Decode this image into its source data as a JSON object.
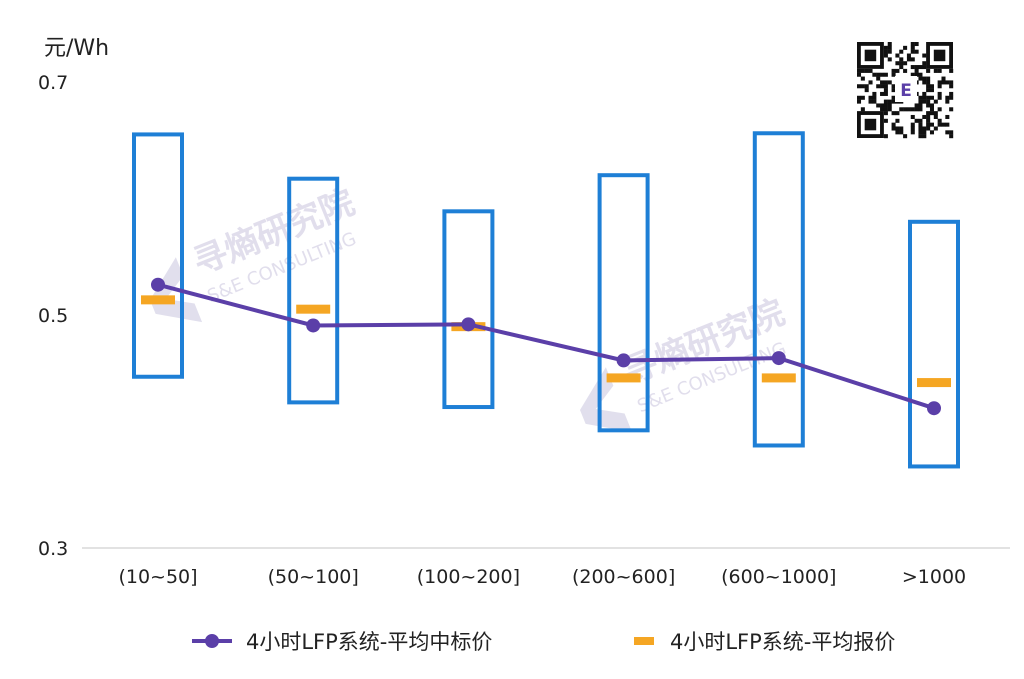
{
  "chart_data": {
    "type": "line",
    "ylabel": "元/Wh",
    "ylim": [
      0.3,
      0.7
    ],
    "yticks": [
      0.3,
      0.5,
      0.7
    ],
    "categories": [
      "(10~50]",
      "(50~100]",
      "(100~200]",
      "(200~600]",
      "(600~1000]",
      ">1000"
    ],
    "range_boxes": [
      {
        "low": 0.447,
        "high": 0.655
      },
      {
        "low": 0.425,
        "high": 0.617
      },
      {
        "low": 0.421,
        "high": 0.589
      },
      {
        "low": 0.401,
        "high": 0.62
      },
      {
        "low": 0.388,
        "high": 0.656
      },
      {
        "low": 0.37,
        "high": 0.58
      }
    ],
    "series": [
      {
        "name": "4小时LFP系统-平均中标价",
        "type": "line",
        "color": "#5b3fa8",
        "values": [
          0.526,
          0.491,
          0.492,
          0.461,
          0.463,
          0.42
        ]
      },
      {
        "name": "4小时LFP系统-平均报价",
        "type": "marker",
        "color": "#f5a623",
        "values": [
          0.513,
          0.505,
          0.49,
          0.446,
          0.446,
          0.442
        ]
      }
    ],
    "box_color": "#1e7fd6",
    "grid": false,
    "legend": "bottom"
  },
  "watermark": {
    "brand": "寻熵研究院",
    "brand_en": "S&E CONSULTING"
  },
  "qr": {
    "center_letter": "E"
  }
}
